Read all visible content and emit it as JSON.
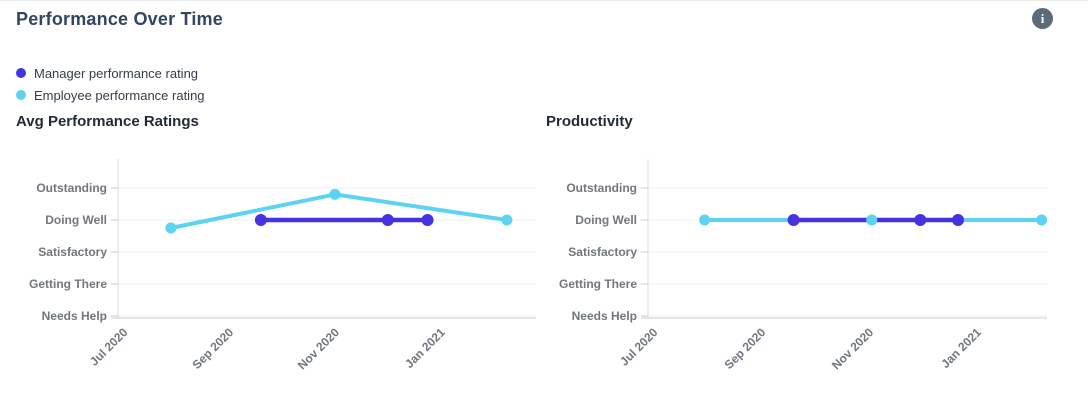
{
  "header": {
    "title": "Performance Over Time",
    "info_glyph": "i"
  },
  "legend": {
    "items": [
      {
        "label": "Manager performance rating",
        "color": "#4533e2"
      },
      {
        "label": "Employee performance rating",
        "color": "#5cd3f0"
      }
    ]
  },
  "chart_data": [
    {
      "type": "line",
      "title": "Avg Performance Ratings",
      "x_unit": "months_after_jul_2020",
      "x_ticks": [
        "Jul 2020",
        "Sep 2020",
        "Nov 2020",
        "Jan 2021"
      ],
      "x_tick_months": [
        0,
        2,
        4,
        6
      ],
      "x_domain_months": [
        -0.1,
        7.8
      ],
      "y_labels": [
        "Outstanding",
        "Doing Well",
        "Satisfactory",
        "Getting There",
        "Needs Help"
      ],
      "y_values": [
        5,
        4,
        3,
        2,
        1
      ],
      "y_domain": [
        1,
        5.95
      ],
      "grid": true,
      "series": [
        {
          "name": "Employee performance rating",
          "color": "#5cd3f0",
          "points": [
            [
              0.9,
              3.75
            ],
            [
              4.0,
              4.8
            ],
            [
              7.25,
              4.0
            ]
          ]
        },
        {
          "name": "Manager performance rating",
          "color": "#4533e2",
          "points": [
            [
              2.6,
              4.0
            ],
            [
              5.0,
              4.0
            ],
            [
              5.75,
              4.0
            ]
          ]
        }
      ]
    },
    {
      "type": "line",
      "title": "Productivity",
      "x_unit": "months_after_jul_2020",
      "x_ticks": [
        "Jul 2020",
        "Sep 2020",
        "Nov 2020",
        "Jan 2021"
      ],
      "x_tick_months": [
        0,
        2,
        4,
        6
      ],
      "x_domain_months": [
        -0.1,
        7.3
      ],
      "y_labels": [
        "Outstanding",
        "Doing Well",
        "Satisfactory",
        "Getting There",
        "Needs Help"
      ],
      "y_values": [
        5,
        4,
        3,
        2,
        1
      ],
      "y_domain": [
        1,
        5.95
      ],
      "grid": true,
      "series": [
        {
          "name": "Employee performance rating",
          "color": "#5cd3f0",
          "points": [
            [
              0.95,
              4.0
            ],
            [
              4.05,
              4.0
            ],
            [
              7.2,
              4.0
            ]
          ]
        },
        {
          "name": "Manager performance rating",
          "color": "#4533e2",
          "points": [
            [
              2.6,
              4.0
            ],
            [
              4.95,
              4.0
            ],
            [
              5.65,
              4.0
            ]
          ]
        }
      ]
    }
  ]
}
